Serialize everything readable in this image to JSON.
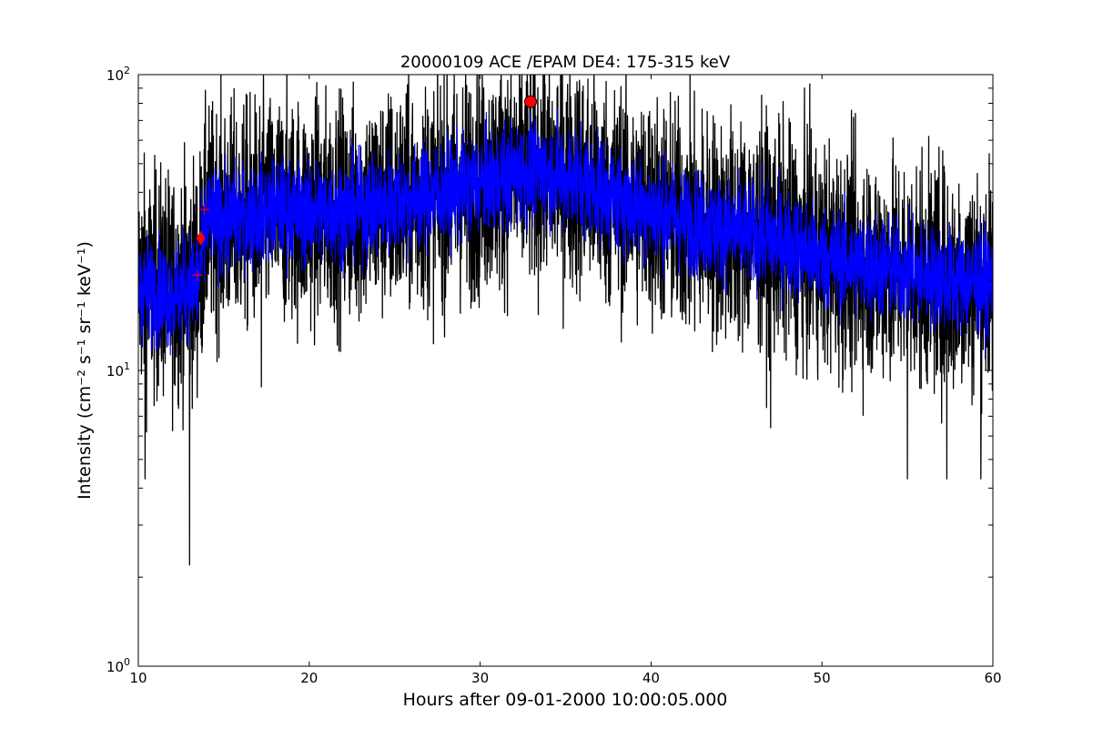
{
  "chart_data": {
    "type": "line",
    "title": "20000109 ACE /EPAM DE4: 175-315 keV",
    "xlabel": "Hours after 09-01-2000 10:00:05.000",
    "ylabel": "Intensity (cm⁻² s⁻¹ sr⁻¹ keV⁻¹)",
    "xlim": [
      10,
      60
    ],
    "ylim": [
      1,
      100
    ],
    "yscale": "log",
    "grid": false,
    "xticks": [
      10,
      20,
      30,
      40,
      50,
      60
    ],
    "xtick_labels": [
      "10",
      "20",
      "30",
      "40",
      "50",
      "60"
    ],
    "yticks": [
      1,
      10,
      100
    ],
    "ytick_labels": [
      {
        "base": "10",
        "exp": "0"
      },
      {
        "base": "10",
        "exp": "1"
      },
      {
        "base": "10",
        "exp": "2"
      }
    ],
    "series": [
      {
        "role": "raw",
        "color": "#000000",
        "trend": [
          [
            10.0,
            20
          ],
          [
            12.0,
            19
          ],
          [
            13.5,
            21
          ],
          [
            14.0,
            32
          ],
          [
            16.0,
            33
          ],
          [
            18.0,
            35
          ],
          [
            20.0,
            34
          ],
          [
            22.0,
            35
          ],
          [
            24.0,
            36
          ],
          [
            26.0,
            38
          ],
          [
            28.0,
            40
          ],
          [
            30.0,
            43
          ],
          [
            32.0,
            46
          ],
          [
            34.0,
            47
          ],
          [
            36.0,
            44
          ],
          [
            38.0,
            38
          ],
          [
            40.0,
            35
          ],
          [
            42.0,
            32
          ],
          [
            44.0,
            30
          ],
          [
            46.0,
            29
          ],
          [
            48.0,
            27
          ],
          [
            50.0,
            24
          ],
          [
            52.0,
            23
          ],
          [
            54.0,
            22
          ],
          [
            56.0,
            21
          ],
          [
            58.0,
            20
          ],
          [
            60.0,
            20
          ]
        ],
        "scatter_factor": 1.55,
        "spikes": [
          [
            10.4,
            4.3
          ],
          [
            13.0,
            2.2
          ],
          [
            17.2,
            8.8
          ],
          [
            26.0,
            62
          ],
          [
            30.2,
            62
          ],
          [
            32.5,
            70
          ],
          [
            34.5,
            90
          ],
          [
            47.0,
            6.4
          ],
          [
            55.0,
            4.3
          ],
          [
            57.3,
            4.3
          ],
          [
            59.3,
            4.3
          ],
          [
            60.0,
            6.4
          ]
        ]
      },
      {
        "role": "smoothed",
        "color": "#0000ff",
        "trend": [
          [
            10.0,
            19
          ],
          [
            12.0,
            18
          ],
          [
            13.5,
            20
          ],
          [
            14.0,
            32
          ],
          [
            16.0,
            33
          ],
          [
            18.0,
            35
          ],
          [
            20.0,
            34
          ],
          [
            22.0,
            35
          ],
          [
            24.0,
            36
          ],
          [
            26.0,
            38
          ],
          [
            28.0,
            40
          ],
          [
            30.0,
            43
          ],
          [
            32.0,
            46
          ],
          [
            34.0,
            47
          ],
          [
            36.0,
            44
          ],
          [
            38.0,
            38
          ],
          [
            40.0,
            35
          ],
          [
            42.0,
            32
          ],
          [
            44.0,
            30
          ],
          [
            46.0,
            29
          ],
          [
            48.0,
            27
          ],
          [
            50.0,
            24
          ],
          [
            52.0,
            23
          ],
          [
            54.0,
            22
          ],
          [
            56.0,
            21
          ],
          [
            58.0,
            20
          ],
          [
            60.0,
            20
          ]
        ],
        "scatter_factor": 1.22
      }
    ],
    "markers": [
      {
        "type": "circle",
        "x": 32.95,
        "y": 81,
        "color": "#ff0000"
      },
      {
        "type": "diamond",
        "x": 13.65,
        "y": 28,
        "color": "#ff0000"
      },
      {
        "type": "plus",
        "x": 13.85,
        "y": 35,
        "color": "#ff0000"
      },
      {
        "type": "plus",
        "x": 13.45,
        "y": 21,
        "color": "#ff0000"
      }
    ]
  }
}
